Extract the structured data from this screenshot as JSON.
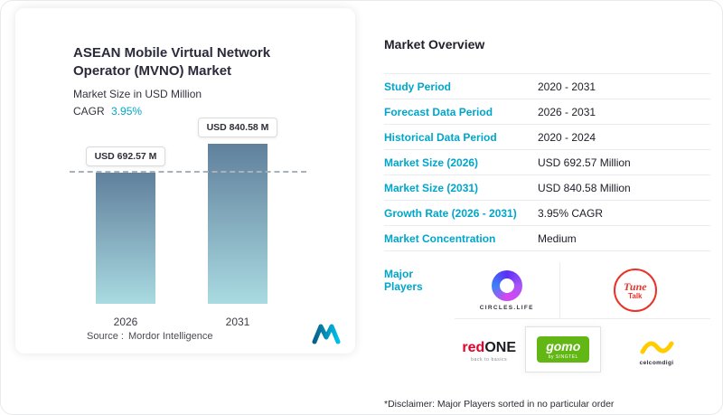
{
  "card": {
    "title": "ASEAN Mobile Virtual Network Operator (MVNO) Market",
    "subtitle": "Market Size in USD Million",
    "cagr_label": "CAGR",
    "cagr_value": "3.95%",
    "source_label": "Source :",
    "source_value": "Mordor Intelligence"
  },
  "chart_data": {
    "type": "bar",
    "categories": [
      "2026",
      "2031"
    ],
    "values": [
      692.57,
      840.58
    ],
    "value_labels": [
      "USD 692.57 M",
      "USD 840.58 M"
    ],
    "title": "ASEAN Mobile Virtual Network Operator (MVNO) Market",
    "xlabel": "",
    "ylabel": "Market Size in USD Million",
    "ylim": [
      0,
      900
    ],
    "reference_line": 692.57,
    "grid": false,
    "legend": "none",
    "bar_gradient": [
      "#60809C",
      "#A9DAE1"
    ]
  },
  "overview": {
    "heading": "Market Overview",
    "rows": [
      {
        "label": "Study Period",
        "value": "2020 - 2031"
      },
      {
        "label": "Forecast Data Period",
        "value": "2026 - 2031"
      },
      {
        "label": "Historical Data Period",
        "value": "2020 - 2024"
      },
      {
        "label": "Market Size (2026)",
        "value": "USD 692.57 Million"
      },
      {
        "label": "Market Size (2031)",
        "value": "USD 840.58 Million"
      },
      {
        "label": "Growth Rate (2026 - 2031)",
        "value": "3.95% CAGR"
      },
      {
        "label": "Market Concentration",
        "value": "Medium"
      }
    ],
    "major_players_label": "Major Players",
    "players": {
      "circles_life": "CIRCLES.LIFE",
      "tune_line1": "Tune",
      "tune_line2": "Talk",
      "redone_part1": "red",
      "redone_part2": "ONE",
      "redone_tagline": "back to basics",
      "gomo_name": "gomo",
      "gomo_sub": "by SINGTEL",
      "celcomdigi": "celcomdigi"
    },
    "disclaimer": "*Disclaimer: Major Players sorted in no particular order"
  },
  "colors": {
    "accent": "#00A6CA",
    "dashed_line": "#A8B2B8",
    "tune_red": "#E8332A",
    "redone_red": "#E4002B",
    "gomo_green": "#62B715",
    "celcom_yellow": "#FFCC00"
  }
}
